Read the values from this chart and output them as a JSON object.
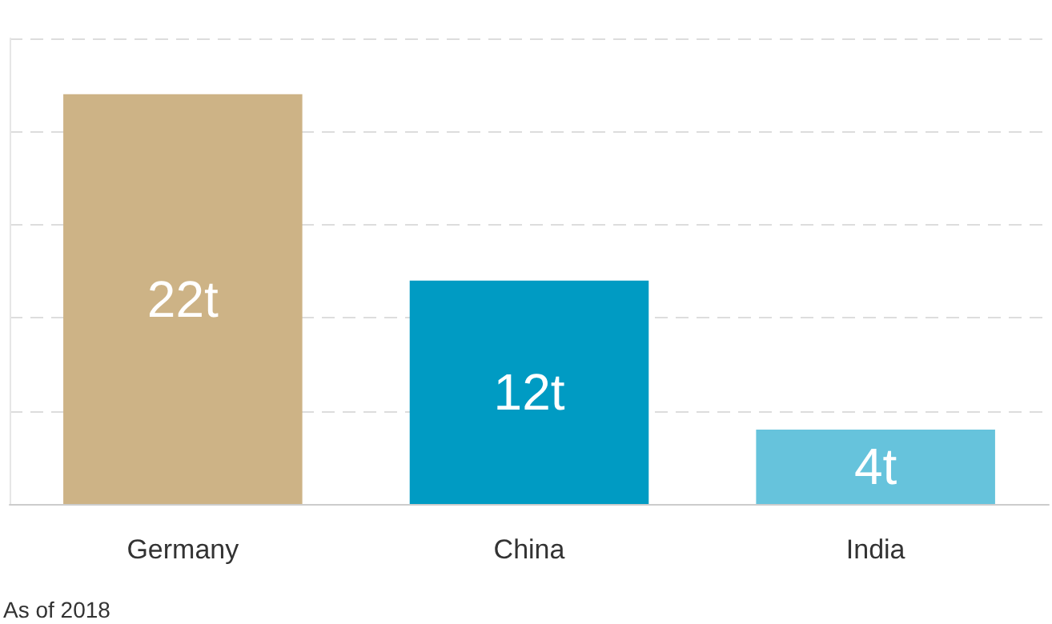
{
  "chart_data": {
    "type": "bar",
    "categories": [
      "Germany",
      "China",
      "India"
    ],
    "values": [
      22,
      12,
      4
    ],
    "colors": [
      "#cdb386",
      "#009bc3",
      "#66c3dc"
    ],
    "value_labels": [
      "22t",
      "12t",
      "4t"
    ],
    "ylim": [
      0,
      25
    ],
    "yticks": [
      {
        "value": 0,
        "label": null
      },
      {
        "value": 5,
        "label": null
      },
      {
        "value": 10,
        "label": null
      },
      {
        "value": 15,
        "label": null
      },
      {
        "value": 20,
        "label": null
      },
      {
        "value": 25,
        "label": null
      }
    ],
    "grid": "y",
    "annotations": [
      "As of 2018"
    ]
  }
}
